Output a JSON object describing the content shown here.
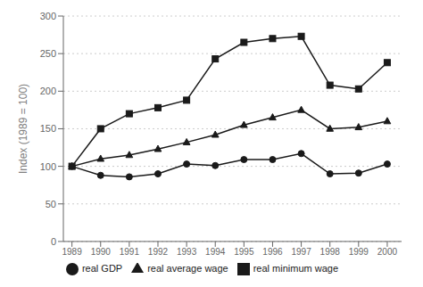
{
  "chart_data": {
    "type": "line",
    "ylabel": "Index (1989 = 100)",
    "x": [
      1989,
      1990,
      1991,
      1992,
      1993,
      1994,
      1995,
      1996,
      1997,
      1998,
      1999,
      2000
    ],
    "series": [
      {
        "name": "real minimum wage",
        "color": "#1a1a1a",
        "marker": "square",
        "values": [
          100,
          150,
          170,
          178,
          188,
          243,
          265,
          270,
          273,
          208,
          203,
          238
        ]
      },
      {
        "name": "real average wage",
        "color": "#1a1a1a",
        "marker": "triangle",
        "values": [
          100,
          110,
          115,
          123,
          132,
          142,
          155,
          165,
          175,
          150,
          152,
          160
        ]
      },
      {
        "name": "real GDP",
        "color": "#1a1a1a",
        "marker": "circle",
        "values": [
          100,
          88,
          86,
          90,
          103,
          101,
          109,
          109,
          117,
          90,
          91,
          103
        ]
      }
    ],
    "xlim": [
      1988.7,
      2000.5
    ],
    "xticks": [
      1989,
      1990,
      1991,
      1992,
      1993,
      1994,
      1995,
      1996,
      1997,
      1998,
      1999,
      2000
    ],
    "ylim": [
      0,
      300
    ],
    "yticks": [
      0,
      50,
      100,
      150,
      200,
      250,
      300
    ],
    "grid": "y",
    "legend": "bottom"
  }
}
